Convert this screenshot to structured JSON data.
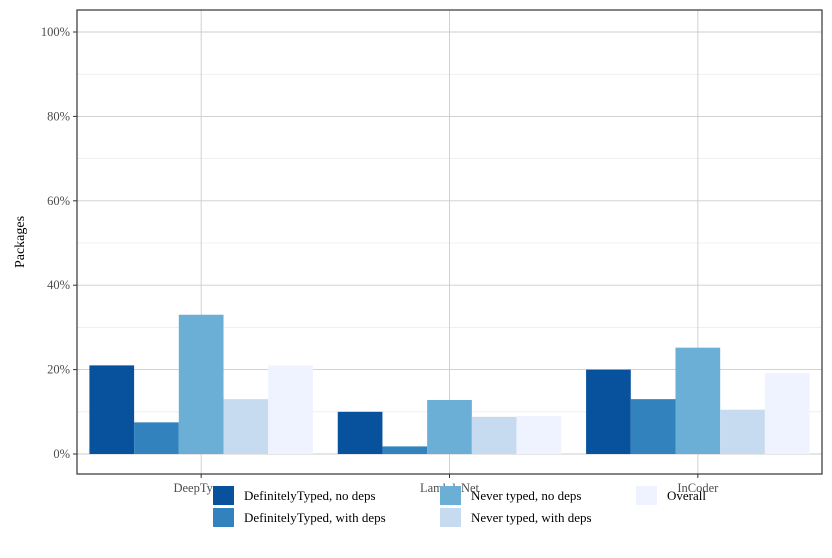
{
  "chart_data": {
    "type": "bar",
    "title": "",
    "xlabel": "",
    "ylabel": "Packages",
    "ylim": [
      0,
      100
    ],
    "yticks": [
      0,
      20,
      40,
      60,
      80,
      100
    ],
    "ytick_labels": [
      "0%",
      "20%",
      "40%",
      "60%",
      "80%",
      "100%"
    ],
    "grid": true,
    "legend_position": "bottom",
    "categories": [
      "DeepTyper",
      "LambdaNet",
      "InCoder"
    ],
    "series": [
      {
        "name": "DefinitelyTyped, no deps",
        "color": "#08519c",
        "values": [
          21,
          10,
          20
        ]
      },
      {
        "name": "DefinitelyTyped, with deps",
        "color": "#3182bd",
        "values": [
          7.5,
          1.8,
          13
        ]
      },
      {
        "name": "Never typed, no deps",
        "color": "#6baed6",
        "values": [
          33,
          12.8,
          25.2
        ]
      },
      {
        "name": "Never typed, with deps",
        "color": "#c6dbef",
        "values": [
          13,
          8.8,
          10.5
        ]
      },
      {
        "name": "Overall",
        "color": "#eff3ff",
        "values": [
          21,
          9,
          19.2
        ]
      }
    ]
  }
}
